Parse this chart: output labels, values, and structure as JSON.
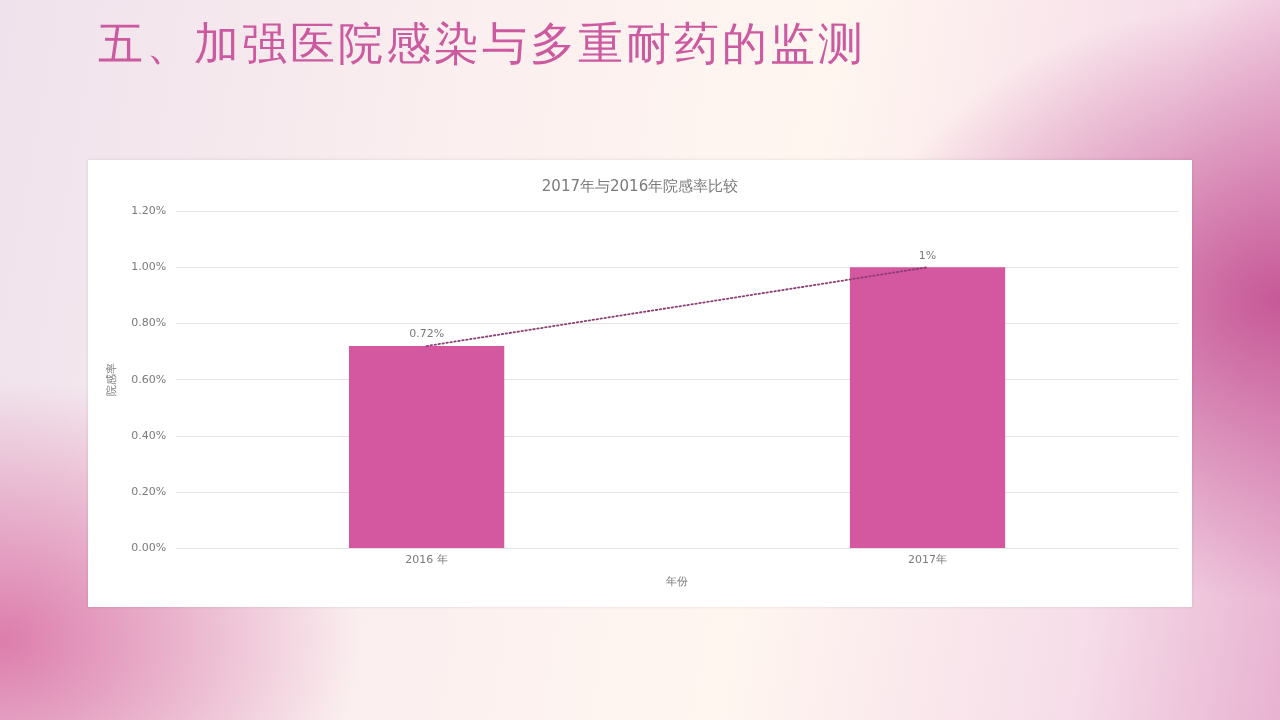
{
  "chart_data": {
    "type": "bar",
    "title": "五、加强医院感染与多重耐药的监测",
    "subtitle": "2017年与2016年院感率比较",
    "xlabel": "年份",
    "ylabel": "院感率",
    "categories": [
      "2016 年",
      "2017年"
    ],
    "series": [
      {
        "color": "#d4589f",
        "values": [
          0.72,
          1
        ],
        "value_labels": [
          "0.72%",
          "1%"
        ]
      },
      {
        "type": "line",
        "x": [
          "2016 年",
          "2017年"
        ],
        "values": [
          0.72,
          1
        ],
        "color": "#8c3d73",
        "line_style": "dotted",
        "marker": "none"
      }
    ],
    "ylim": [
      0,
      1.2
    ],
    "yticks": [
      {
        "value": 0,
        "label": "0.00%"
      },
      {
        "value": 0.2,
        "label": "0.20%"
      },
      {
        "value": 0.4,
        "label": "0.40%"
      },
      {
        "value": 0.6,
        "label": "0.60%"
      },
      {
        "value": 0.8,
        "label": "0.80%"
      },
      {
        "value": 1,
        "label": "1.00%"
      },
      {
        "value": 1.2,
        "label": "1.20%"
      }
    ],
    "grid": "y",
    "legend": false
  }
}
